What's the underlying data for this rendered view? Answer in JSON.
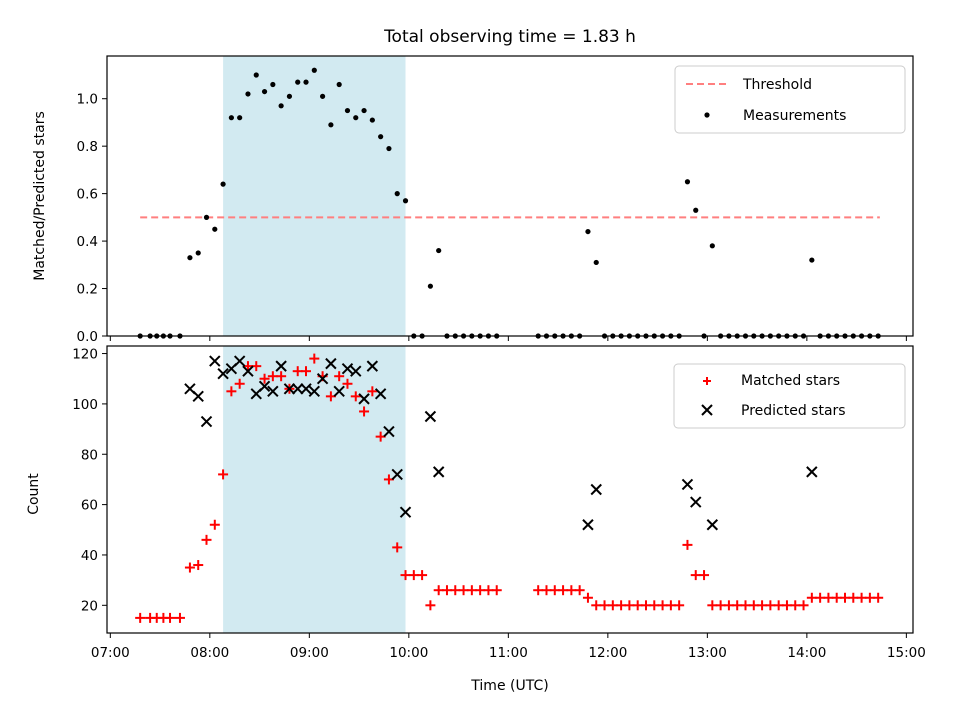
{
  "chart_data": {
    "type": "scatter",
    "title": "Total observing time = 1.83 h",
    "xlabel": "Time (UTC)",
    "x_ticks": [
      "07:00",
      "08:00",
      "09:00",
      "10:00",
      "11:00",
      "12:00",
      "13:00",
      "14:00",
      "15:00"
    ],
    "xlim": [
      "06:58",
      "15:04"
    ],
    "observing_window": {
      "start": "08:08",
      "end": "09:58",
      "color": "#add8e6"
    },
    "top": {
      "ylabel": "Matched/Predicted stars",
      "ylim": [
        0,
        1.18
      ],
      "y_ticks": [
        "0.0",
        "0.2",
        "0.4",
        "0.6",
        "0.8",
        "1.0"
      ],
      "legend_position": "top-right",
      "threshold": {
        "name": "Threshold",
        "value": 0.5,
        "x_range": [
          "07:18",
          "14:44"
        ],
        "color": "#ff7f7f"
      },
      "measurements": {
        "name": "Measurements",
        "color": "#000000",
        "points": [
          [
            "07:18",
            0
          ],
          [
            "07:24",
            0
          ],
          [
            "07:28",
            0
          ],
          [
            "07:32",
            0
          ],
          [
            "07:36",
            0
          ],
          [
            "07:42",
            0
          ],
          [
            "07:48",
            0.33
          ],
          [
            "07:53",
            0.35
          ],
          [
            "07:58",
            0.5
          ],
          [
            "08:03",
            0.45
          ],
          [
            "08:08",
            0.64
          ],
          [
            "08:13",
            0.92
          ],
          [
            "08:18",
            0.92
          ],
          [
            "08:23",
            1.02
          ],
          [
            "08:28",
            1.1
          ],
          [
            "08:33",
            1.03
          ],
          [
            "08:38",
            1.06
          ],
          [
            "08:43",
            0.97
          ],
          [
            "08:48",
            1.01
          ],
          [
            "08:53",
            1.07
          ],
          [
            "08:58",
            1.07
          ],
          [
            "09:03",
            1.12
          ],
          [
            "09:08",
            1.01
          ],
          [
            "09:13",
            0.89
          ],
          [
            "09:18",
            1.06
          ],
          [
            "09:23",
            0.95
          ],
          [
            "09:28",
            0.92
          ],
          [
            "09:33",
            0.95
          ],
          [
            "09:38",
            0.91
          ],
          [
            "09:43",
            0.84
          ],
          [
            "09:48",
            0.79
          ],
          [
            "09:53",
            0.6
          ],
          [
            "09:58",
            0.57
          ],
          [
            "10:03",
            0
          ],
          [
            "10:08",
            0
          ],
          [
            "10:13",
            0.21
          ],
          [
            "10:18",
            0.36
          ],
          [
            "10:23",
            0
          ],
          [
            "10:28",
            0
          ],
          [
            "10:33",
            0
          ],
          [
            "10:38",
            0
          ],
          [
            "10:43",
            0
          ],
          [
            "10:48",
            0
          ],
          [
            "10:53",
            0
          ],
          [
            "11:18",
            0
          ],
          [
            "11:23",
            0
          ],
          [
            "11:28",
            0
          ],
          [
            "11:33",
            0
          ],
          [
            "11:38",
            0
          ],
          [
            "11:43",
            0
          ],
          [
            "11:48",
            0.44
          ],
          [
            "11:53",
            0.31
          ],
          [
            "11:58",
            0
          ],
          [
            "12:03",
            0
          ],
          [
            "12:08",
            0
          ],
          [
            "12:13",
            0
          ],
          [
            "12:18",
            0
          ],
          [
            "12:23",
            0
          ],
          [
            "12:28",
            0
          ],
          [
            "12:33",
            0
          ],
          [
            "12:38",
            0
          ],
          [
            "12:43",
            0
          ],
          [
            "12:48",
            0.65
          ],
          [
            "12:53",
            0.53
          ],
          [
            "12:58",
            0
          ],
          [
            "13:03",
            0.38
          ],
          [
            "13:08",
            0
          ],
          [
            "13:13",
            0
          ],
          [
            "13:18",
            0
          ],
          [
            "13:23",
            0
          ],
          [
            "13:28",
            0
          ],
          [
            "13:33",
            0
          ],
          [
            "13:38",
            0
          ],
          [
            "13:43",
            0
          ],
          [
            "13:48",
            0
          ],
          [
            "13:53",
            0
          ],
          [
            "13:58",
            0
          ],
          [
            "14:03",
            0.32
          ],
          [
            "14:08",
            0
          ],
          [
            "14:13",
            0
          ],
          [
            "14:18",
            0
          ],
          [
            "14:23",
            0
          ],
          [
            "14:28",
            0
          ],
          [
            "14:33",
            0
          ],
          [
            "14:38",
            0
          ],
          [
            "14:43",
            0
          ]
        ]
      }
    },
    "bottom": {
      "ylabel": "Count",
      "ylim": [
        9,
        123
      ],
      "y_ticks": [
        "20",
        "40",
        "60",
        "80",
        "100",
        "120"
      ],
      "legend_position": "top-right",
      "series": [
        {
          "name": "Matched stars",
          "marker": "plus",
          "color": "#ff0000",
          "points": [
            [
              "07:18",
              15
            ],
            [
              "07:24",
              15
            ],
            [
              "07:28",
              15
            ],
            [
              "07:32",
              15
            ],
            [
              "07:36",
              15
            ],
            [
              "07:42",
              15
            ],
            [
              "07:48",
              35
            ],
            [
              "07:53",
              36
            ],
            [
              "07:58",
              46
            ],
            [
              "08:03",
              52
            ],
            [
              "08:08",
              72
            ],
            [
              "08:13",
              105
            ],
            [
              "08:18",
              108
            ],
            [
              "08:23",
              115
            ],
            [
              "08:28",
              115
            ],
            [
              "08:33",
              110
            ],
            [
              "08:38",
              111
            ],
            [
              "08:43",
              111
            ],
            [
              "08:48",
              106
            ],
            [
              "08:53",
              113
            ],
            [
              "08:58",
              113
            ],
            [
              "09:03",
              118
            ],
            [
              "09:08",
              111
            ],
            [
              "09:13",
              103
            ],
            [
              "09:18",
              111
            ],
            [
              "09:23",
              108
            ],
            [
              "09:28",
              103
            ],
            [
              "09:33",
              97
            ],
            [
              "09:38",
              105
            ],
            [
              "09:43",
              87
            ],
            [
              "09:48",
              70
            ],
            [
              "09:53",
              43
            ],
            [
              "09:58",
              32
            ],
            [
              "10:03",
              32
            ],
            [
              "10:08",
              32
            ],
            [
              "10:13",
              20
            ],
            [
              "10:18",
              26
            ],
            [
              "10:23",
              26
            ],
            [
              "10:28",
              26
            ],
            [
              "10:33",
              26
            ],
            [
              "10:38",
              26
            ],
            [
              "10:43",
              26
            ],
            [
              "10:48",
              26
            ],
            [
              "10:53",
              26
            ],
            [
              "11:18",
              26
            ],
            [
              "11:23",
              26
            ],
            [
              "11:28",
              26
            ],
            [
              "11:33",
              26
            ],
            [
              "11:38",
              26
            ],
            [
              "11:43",
              26
            ],
            [
              "11:48",
              23
            ],
            [
              "11:53",
              20
            ],
            [
              "11:58",
              20
            ],
            [
              "12:03",
              20
            ],
            [
              "12:08",
              20
            ],
            [
              "12:13",
              20
            ],
            [
              "12:18",
              20
            ],
            [
              "12:23",
              20
            ],
            [
              "12:28",
              20
            ],
            [
              "12:33",
              20
            ],
            [
              "12:38",
              20
            ],
            [
              "12:43",
              20
            ],
            [
              "12:48",
              44
            ],
            [
              "12:53",
              32
            ],
            [
              "12:58",
              32
            ],
            [
              "13:03",
              20
            ],
            [
              "13:08",
              20
            ],
            [
              "13:13",
              20
            ],
            [
              "13:18",
              20
            ],
            [
              "13:23",
              20
            ],
            [
              "13:28",
              20
            ],
            [
              "13:33",
              20
            ],
            [
              "13:38",
              20
            ],
            [
              "13:43",
              20
            ],
            [
              "13:48",
              20
            ],
            [
              "13:53",
              20
            ],
            [
              "13:58",
              20
            ],
            [
              "14:03",
              23
            ],
            [
              "14:08",
              23
            ],
            [
              "14:13",
              23
            ],
            [
              "14:18",
              23
            ],
            [
              "14:23",
              23
            ],
            [
              "14:28",
              23
            ],
            [
              "14:33",
              23
            ],
            [
              "14:38",
              23
            ],
            [
              "14:43",
              23
            ]
          ]
        },
        {
          "name": "Predicted stars",
          "marker": "x",
          "color": "#000000",
          "points": [
            [
              "07:48",
              106
            ],
            [
              "07:53",
              103
            ],
            [
              "07:58",
              93
            ],
            [
              "08:03",
              117
            ],
            [
              "08:08",
              112
            ],
            [
              "08:13",
              114
            ],
            [
              "08:18",
              117
            ],
            [
              "08:23",
              113
            ],
            [
              "08:28",
              104
            ],
            [
              "08:33",
              107
            ],
            [
              "08:38",
              105
            ],
            [
              "08:43",
              115
            ],
            [
              "08:48",
              106
            ],
            [
              "08:53",
              106
            ],
            [
              "08:58",
              106
            ],
            [
              "09:03",
              105
            ],
            [
              "09:08",
              110
            ],
            [
              "09:13",
              116
            ],
            [
              "09:18",
              105
            ],
            [
              "09:23",
              114
            ],
            [
              "09:28",
              113
            ],
            [
              "09:33",
              102
            ],
            [
              "09:38",
              115
            ],
            [
              "09:43",
              104
            ],
            [
              "09:48",
              89
            ],
            [
              "09:53",
              72
            ],
            [
              "09:58",
              57
            ],
            [
              "10:13",
              95
            ],
            [
              "10:18",
              73
            ],
            [
              "11:48",
              52
            ],
            [
              "11:53",
              66
            ],
            [
              "12:48",
              68
            ],
            [
              "12:53",
              61
            ],
            [
              "13:03",
              52
            ],
            [
              "14:03",
              73
            ]
          ]
        }
      ]
    }
  }
}
